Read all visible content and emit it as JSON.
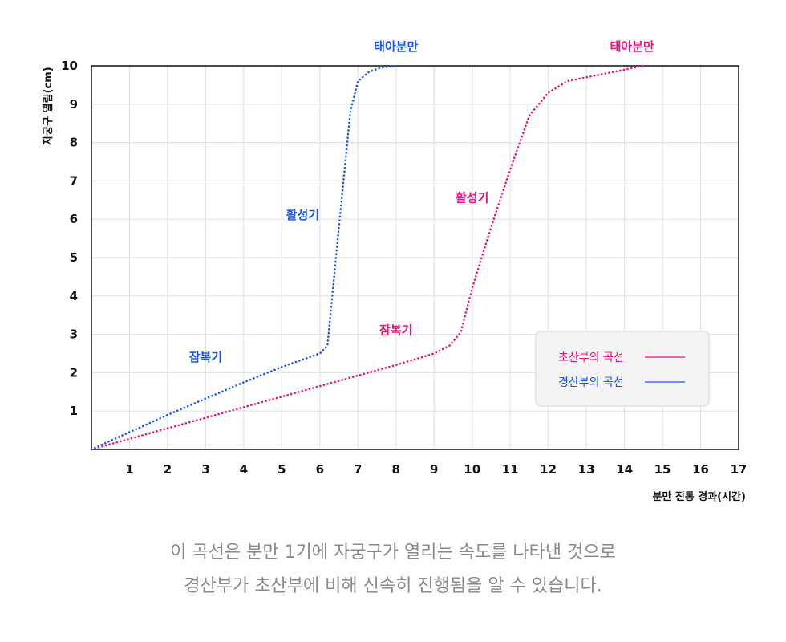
{
  "chart_data": {
    "type": "line",
    "xlabel": "분만 진통 경과(시간)",
    "ylabel": "자궁구 열림(cm)",
    "xlim": [
      0,
      17
    ],
    "ylim": [
      0,
      10
    ],
    "xticks": [
      "1",
      "2",
      "3",
      "4",
      "5",
      "6",
      "7",
      "8",
      "9",
      "10",
      "11",
      "12",
      "13",
      "14",
      "15",
      "16",
      "17"
    ],
    "yticks": [
      "1",
      "2",
      "3",
      "4",
      "5",
      "6",
      "7",
      "8",
      "9",
      "10"
    ],
    "grid": true,
    "legend_position": "bottom-right",
    "series": [
      {
        "name": "초산부의 곡선",
        "color": "#e8157a",
        "line_style": "dotted",
        "points": [
          [
            0,
            0
          ],
          [
            2,
            0.55
          ],
          [
            4,
            1.1
          ],
          [
            6,
            1.65
          ],
          [
            8,
            2.2
          ],
          [
            9,
            2.5
          ],
          [
            9.4,
            2.7
          ],
          [
            9.7,
            3.05
          ],
          [
            10,
            4.2
          ],
          [
            10.5,
            5.8
          ],
          [
            11,
            7.3
          ],
          [
            11.5,
            8.7
          ],
          [
            12,
            9.3
          ],
          [
            12.5,
            9.6
          ],
          [
            13,
            9.7
          ],
          [
            13.5,
            9.8
          ],
          [
            14.5,
            10
          ]
        ],
        "phase_labels": [
          "잠복기",
          "활성기",
          "태아분만"
        ]
      },
      {
        "name": "경산부의 곡선",
        "color": "#1a56f0",
        "line_style": "dotted",
        "points": [
          [
            0,
            0
          ],
          [
            2,
            0.9
          ],
          [
            4,
            1.75
          ],
          [
            5,
            2.15
          ],
          [
            6,
            2.5
          ],
          [
            6.2,
            2.7
          ],
          [
            6.5,
            5.8
          ],
          [
            6.8,
            8.8
          ],
          [
            7,
            9.6
          ],
          [
            7.3,
            9.85
          ],
          [
            7.6,
            9.95
          ],
          [
            8,
            10
          ]
        ],
        "phase_labels": [
          "잠복기",
          "활성기",
          "태아분만"
        ]
      }
    ]
  },
  "caption": {
    "line1": "이 곡선은 분만 1기에 자궁구가 열리는 속도를 나타낸 것으로",
    "line2": "경산부가 초산부에 비해 신속히 진행됨을 알 수 있습니다."
  }
}
